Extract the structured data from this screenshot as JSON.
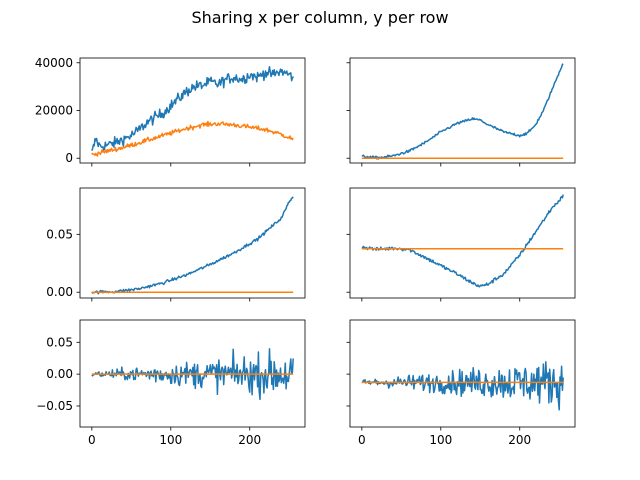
{
  "chart_data": {
    "type": "line",
    "title": "Sharing x per column, y per row",
    "layout": {
      "rows": 3,
      "cols": 2,
      "sharex": "col",
      "sharey": "row"
    },
    "series_colors": [
      "#1f77b4",
      "#ff7f0e"
    ],
    "xlim": [
      -15,
      270
    ],
    "xticks": [
      0,
      100,
      200
    ],
    "rows": [
      {
        "ylim": [
          -2000,
          42000
        ],
        "yticks": [
          0,
          20000,
          40000
        ],
        "ytick_labels": [
          "0",
          "20000",
          "40000"
        ]
      },
      {
        "ylim": [
          -0.005,
          0.09
        ],
        "yticks": [
          0,
          0.05
        ],
        "ytick_labels": [
          "0.00",
          "0.05"
        ]
      },
      {
        "ylim": [
          -0.083,
          0.085
        ],
        "yticks": [
          -0.05,
          0,
          0.05
        ],
        "ytick_labels": [
          "−0.05",
          "0.00",
          "0.05"
        ]
      }
    ],
    "panels": [
      {
        "row": 0,
        "col": 0,
        "series": [
          {
            "points": [
              [
                0,
                2000
              ],
              [
                5,
                8000
              ],
              [
                10,
                5000
              ],
              [
                20,
                5500
              ],
              [
                30,
                6500
              ],
              [
                40,
                8000
              ],
              [
                50,
                9500
              ],
              [
                60,
                12000
              ],
              [
                70,
                15000
              ],
              [
                80,
                17000
              ],
              [
                90,
                19000
              ],
              [
                100,
                22000
              ],
              [
                110,
                25000
              ],
              [
                120,
                28000
              ],
              [
                130,
                30000
              ],
              [
                140,
                30500
              ],
              [
                150,
                32000
              ],
              [
                160,
                31000
              ],
              [
                170,
                33000
              ],
              [
                180,
                34000
              ],
              [
                190,
                33000
              ],
              [
                200,
                35000
              ],
              [
                210,
                34000
              ],
              [
                220,
                36000
              ],
              [
                230,
                35000
              ],
              [
                240,
                36500
              ],
              [
                250,
                35000
              ],
              [
                255,
                34000
              ]
            ],
            "noise": 2200
          },
          {
            "points": [
              [
                0,
                1500
              ],
              [
                20,
                3000
              ],
              [
                40,
                4500
              ],
              [
                60,
                6500
              ],
              [
                80,
                8500
              ],
              [
                100,
                10500
              ],
              [
                120,
                12500
              ],
              [
                140,
                14000
              ],
              [
                160,
                14500
              ],
              [
                180,
                14000
              ],
              [
                200,
                13000
              ],
              [
                220,
                12000
              ],
              [
                240,
                10000
              ],
              [
                255,
                8000
              ]
            ],
            "noise": 900
          }
        ]
      },
      {
        "row": 0,
        "col": 1,
        "series": [
          {
            "points": [
              [
                0,
                800
              ],
              [
                20,
                200
              ],
              [
                40,
                1000
              ],
              [
                60,
                3000
              ],
              [
                80,
                6500
              ],
              [
                100,
                11000
              ],
              [
                120,
                14500
              ],
              [
                140,
                16500
              ],
              [
                150,
                16000
              ],
              [
                160,
                14000
              ],
              [
                180,
                11000
              ],
              [
                200,
                9500
              ],
              [
                210,
                10500
              ],
              [
                220,
                14000
              ],
              [
                230,
                20000
              ],
              [
                240,
                28000
              ],
              [
                250,
                36000
              ],
              [
                255,
                40000
              ]
            ],
            "noise": 500
          },
          {
            "points": [
              [
                0,
                0
              ],
              [
                255,
                0
              ]
            ],
            "noise": 0
          }
        ]
      },
      {
        "row": 1,
        "col": 0,
        "series": [
          {
            "points": [
              [
                0,
                0
              ],
              [
                30,
                0.0005
              ],
              [
                60,
                0.003
              ],
              [
                90,
                0.008
              ],
              [
                120,
                0.015
              ],
              [
                150,
                0.024
              ],
              [
                180,
                0.034
              ],
              [
                210,
                0.046
              ],
              [
                240,
                0.064
              ],
              [
                250,
                0.078
              ],
              [
                255,
                0.083
              ]
            ],
            "noise": 0.0012
          },
          {
            "points": [
              [
                0,
                0
              ],
              [
                255,
                0
              ]
            ],
            "noise": 0
          }
        ]
      },
      {
        "row": 1,
        "col": 1,
        "series": [
          {
            "points": [
              [
                0,
                0.039
              ],
              [
                20,
                0.037
              ],
              [
                40,
                0.038
              ],
              [
                60,
                0.037
              ],
              [
                80,
                0.03
              ],
              [
                100,
                0.023
              ],
              [
                120,
                0.016
              ],
              [
                140,
                0.008
              ],
              [
                150,
                0.005
              ],
              [
                160,
                0.007
              ],
              [
                180,
                0.016
              ],
              [
                200,
                0.032
              ],
              [
                220,
                0.052
              ],
              [
                240,
                0.072
              ],
              [
                255,
                0.083
              ]
            ],
            "noise": 0.0015
          },
          {
            "points": [
              [
                0,
                0.0375
              ],
              [
                255,
                0.0375
              ]
            ],
            "noise": 0
          }
        ]
      },
      {
        "row": 2,
        "col": 0,
        "series": [
          {
            "points": [
              [
                0,
                0.0
              ],
              [
                50,
                0.0
              ],
              [
                100,
                0.0
              ],
              [
                150,
                0.0
              ],
              [
                200,
                0.0
              ],
              [
                255,
                0.0
              ]
            ],
            "noise": 0.035,
            "noise_growth": true
          },
          {
            "points": [
              [
                0,
                0
              ],
              [
                255,
                0
              ]
            ],
            "noise": 0
          }
        ]
      },
      {
        "row": 2,
        "col": 1,
        "series": [
          {
            "points": [
              [
                0,
                -0.013
              ],
              [
                50,
                -0.013
              ],
              [
                100,
                -0.013
              ],
              [
                150,
                -0.013
              ],
              [
                200,
                -0.013
              ],
              [
                255,
                -0.013
              ]
            ],
            "noise": 0.035,
            "noise_growth": true
          },
          {
            "points": [
              [
                0,
                -0.013
              ],
              [
                255,
                -0.013
              ]
            ],
            "noise": 0
          }
        ]
      }
    ]
  }
}
